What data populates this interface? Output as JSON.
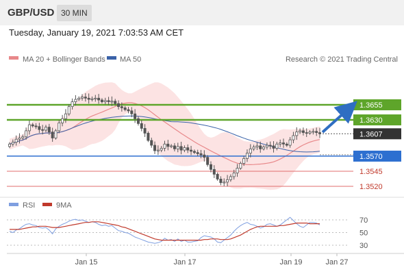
{
  "header": {
    "symbol": "GBP/USD",
    "timeframe": "30 MIN"
  },
  "timestamp": "Tuesday, January 19, 2021 7:03:53 AM CET",
  "legend": {
    "ma20_label": "MA 20 + Bollinger Bands",
    "ma50_label": "MA 50",
    "credit": "Research © 2021 Trading Central"
  },
  "colors": {
    "ma20": "#e8888a",
    "ma50": "#3a62a8",
    "band": "#fbd9da",
    "resistance": "#5ea52a",
    "support_blue": "#2d6fd0",
    "support_red": "#e06c6c",
    "candle": "#555555",
    "current": "#333333",
    "arrow": "#2f6ec2",
    "rsi": "#7f9fe0",
    "rsi_ma": "#c0392b"
  },
  "chart_data": [
    {
      "type": "candlestick",
      "title": "GBP/USD 30 MIN",
      "ylim": [
        1.3505,
        1.369
      ],
      "x_ticks": [
        "Jan 15",
        "Jan 17",
        "Jan 19",
        "Jan 27"
      ],
      "current_price": "1.3607",
      "levels": [
        {
          "value": "1.3655",
          "kind": "resistance"
        },
        {
          "value": "1.3630",
          "kind": "resistance"
        },
        {
          "value": "1.3570",
          "kind": "support"
        },
        {
          "value": "1.3545",
          "kind": "support"
        },
        {
          "value": "1.3520",
          "kind": "support"
        }
      ],
      "close": [
        1.359,
        1.3593,
        1.3598,
        1.36,
        1.3602,
        1.3612,
        1.3622,
        1.362,
        1.3619,
        1.3614,
        1.3613,
        1.3618,
        1.361,
        1.36,
        1.3612,
        1.3625,
        1.3632,
        1.364,
        1.3652,
        1.366,
        1.3664,
        1.3666,
        1.3668,
        1.3666,
        1.3664,
        1.3665,
        1.3666,
        1.3663,
        1.366,
        1.3662,
        1.366,
        1.3661,
        1.3657,
        1.3652,
        1.365,
        1.3647,
        1.3645,
        1.364,
        1.3632,
        1.3624,
        1.3616,
        1.3608,
        1.3596,
        1.3588,
        1.3579,
        1.358,
        1.3583,
        1.359,
        1.3586,
        1.3587,
        1.3582,
        1.3586,
        1.358,
        1.3584,
        1.358,
        1.3578,
        1.3576,
        1.3574,
        1.3572,
        1.3568,
        1.3556,
        1.3548,
        1.354,
        1.3532,
        1.3526,
        1.3527,
        1.3531,
        1.3536,
        1.3542,
        1.355,
        1.3558,
        1.3566,
        1.3575,
        1.3582,
        1.3585,
        1.3587,
        1.3582,
        1.3585,
        1.3588,
        1.3587,
        1.3583,
        1.359,
        1.3592,
        1.359,
        1.3588,
        1.3597,
        1.3604,
        1.361,
        1.3612,
        1.3609,
        1.3608,
        1.361,
        1.3611,
        1.3609,
        1.3607
      ]
    },
    {
      "type": "line",
      "title": "RSI",
      "legend": [
        "RSI",
        "9MA"
      ],
      "ylim": [
        25,
        80
      ],
      "y_ticks": [
        "70",
        "50",
        "30"
      ],
      "rsi": [
        52,
        50,
        54,
        56,
        60,
        63,
        64,
        62,
        61,
        58,
        57,
        58,
        54,
        48,
        56,
        60,
        63,
        65,
        68,
        70,
        71,
        69,
        70,
        68,
        66,
        67,
        66,
        63,
        61,
        62,
        60,
        61,
        57,
        53,
        52,
        50,
        49,
        46,
        43,
        41,
        39,
        37,
        35,
        34,
        33,
        34,
        36,
        41,
        38,
        39,
        36,
        40,
        36,
        38,
        35,
        35,
        36,
        37,
        42,
        45,
        44,
        43,
        40,
        35,
        34,
        38,
        42,
        46,
        52,
        57,
        61,
        64,
        66,
        63,
        62,
        60,
        57,
        59,
        63,
        64,
        62,
        60,
        62,
        66,
        70,
        74,
        69,
        64,
        60,
        58,
        62,
        66,
        66,
        65,
        62
      ],
      "rsi_ma": [
        55,
        55,
        55,
        55,
        56,
        57,
        58,
        59,
        59,
        60,
        60,
        60,
        59,
        58,
        58,
        58,
        59,
        60,
        61,
        62,
        63,
        64,
        65,
        66,
        66,
        67,
        67,
        67,
        66,
        65,
        64,
        63,
        62,
        61,
        59,
        58,
        56,
        54,
        52,
        50,
        48,
        46,
        44,
        42,
        40,
        39,
        38,
        38,
        38,
        38,
        38,
        38,
        38,
        38,
        38,
        38,
        38,
        38,
        38,
        39,
        39,
        40,
        40,
        40,
        39,
        39,
        39,
        40,
        42,
        44,
        46,
        49,
        52,
        55,
        57,
        59,
        60,
        60,
        60,
        60,
        60,
        60,
        61,
        61,
        62,
        63,
        64,
        65,
        65,
        65,
        65,
        64,
        64,
        64,
        64
      ]
    }
  ]
}
